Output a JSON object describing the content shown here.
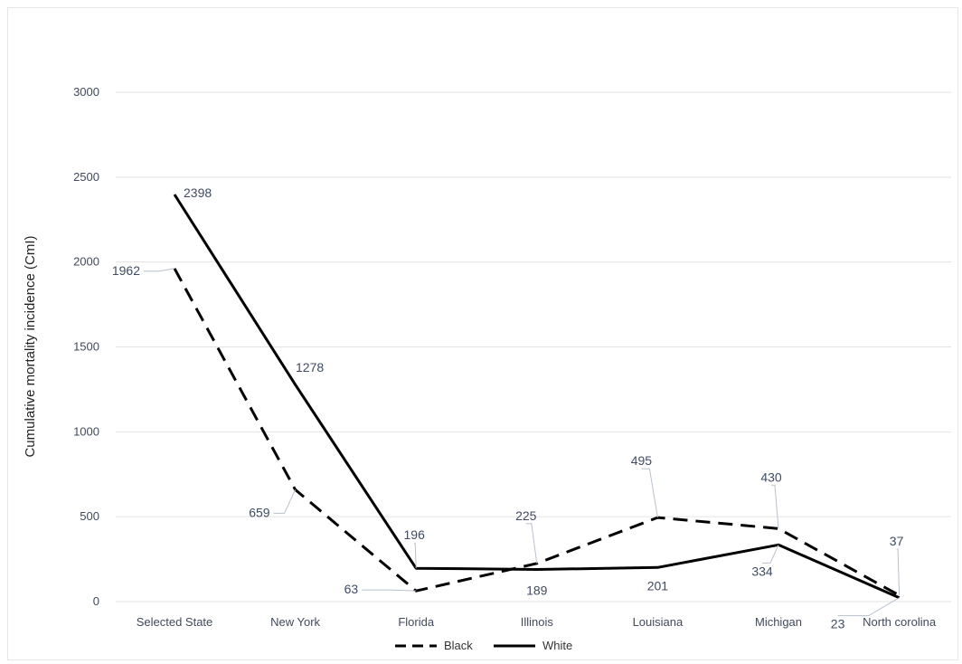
{
  "chart_data": {
    "type": "line",
    "title": "",
    "xlabel": "",
    "ylabel": "Cumulative mortality incidence (CmI)",
    "categories": [
      "Selected State",
      "New York",
      "Florida",
      "Illinois",
      "Louisiana",
      "Michigan",
      "North corolina"
    ],
    "ylim": [
      0,
      3000
    ],
    "yticks": [
      "0",
      "500",
      "1000",
      "1500",
      "2000",
      "2500",
      "3000"
    ],
    "grid": true,
    "legend_position": "bottom",
    "series": [
      {
        "name": "Black",
        "style": "dashed",
        "color": "#000000",
        "values": [
          1962,
          659,
          63,
          225,
          495,
          430,
          37
        ]
      },
      {
        "name": "White",
        "style": "solid",
        "color": "#000000",
        "values": [
          2398,
          1278,
          196,
          189,
          201,
          334,
          23
        ]
      }
    ],
    "data_labels": {
      "Black": [
        "1962",
        "659",
        "63",
        "225",
        "495",
        "430",
        "37"
      ],
      "White": [
        "2398",
        "1278",
        "196",
        "189",
        "201",
        "334",
        "23"
      ]
    }
  }
}
